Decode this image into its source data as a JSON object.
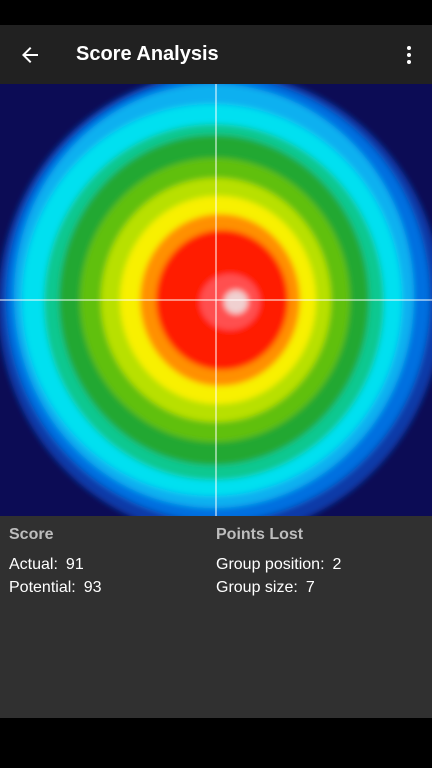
{
  "app_bar": {
    "title": "Score Analysis"
  },
  "score": {
    "heading": "Score",
    "rows": [
      {
        "label": "Actual:",
        "value": 91
      },
      {
        "label": "Potential:",
        "value": 93
      }
    ]
  },
  "points_lost": {
    "heading": "Points Lost",
    "rows": [
      {
        "label": "Group position:",
        "value": 2
      },
      {
        "label": "Group size:",
        "value": 7
      }
    ]
  }
}
